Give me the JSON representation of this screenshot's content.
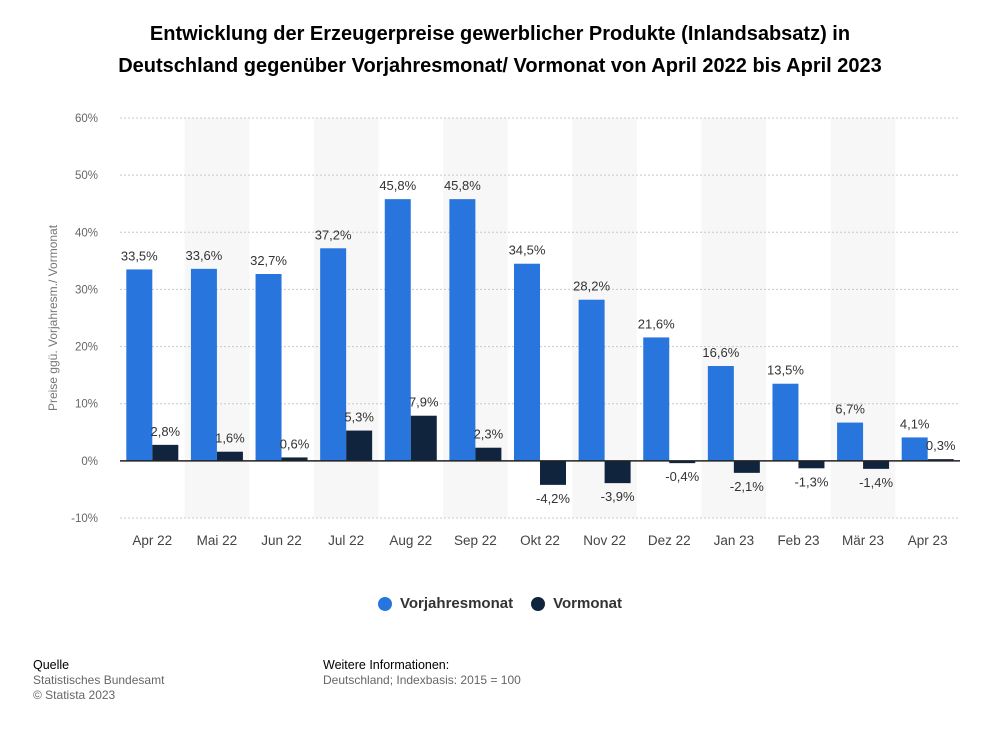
{
  "title_line1": "Entwicklung der Erzeugerpreise gewerblicher Produkte (Inlandsabsatz) in",
  "title_line2": "Deutschland gegenüber Vorjahresmonat/ Vormonat von April 2022 bis April 2023",
  "chart_data": {
    "type": "bar",
    "ylabel": "Preise ggü. Vorjahresm./ Vormonat",
    "ylim": [
      -10,
      60
    ],
    "yticks": [
      "-10%",
      "0%",
      "10%",
      "20%",
      "30%",
      "40%",
      "50%",
      "60%"
    ],
    "categories": [
      "Apr 22",
      "Mai 22",
      "Jun 22",
      "Jul 22",
      "Aug 22",
      "Sep 22",
      "Okt 22",
      "Nov 22",
      "Dez 22",
      "Jan 23",
      "Feb 23",
      "Mär 23",
      "Apr 23"
    ],
    "series": [
      {
        "name": "Vorjahresmonat",
        "color": "#2876dd",
        "values": [
          33.5,
          33.6,
          32.7,
          37.2,
          45.8,
          45.8,
          34.5,
          28.2,
          21.6,
          16.6,
          13.5,
          6.7,
          4.1
        ],
        "labels": [
          "33,5%",
          "33,6%",
          "32,7%",
          "37,2%",
          "45,8%",
          "45,8%",
          "34,5%",
          "28,2%",
          "21,6%",
          "16,6%",
          "13,5%",
          "6,7%",
          "4,1%"
        ]
      },
      {
        "name": "Vormonat",
        "color": "#10243e",
        "values": [
          2.8,
          1.6,
          0.6,
          5.3,
          7.9,
          2.3,
          -4.2,
          -3.9,
          -0.4,
          -2.1,
          -1.3,
          -1.4,
          0.3
        ],
        "labels": [
          "2,8%",
          "1,6%",
          "0,6%",
          "5,3%",
          "7,9%",
          "2,3%",
          "-4,2%",
          "-3,9%",
          "-0,4%",
          "-2,1%",
          "-1,3%",
          "-1,4%",
          "0,3%"
        ]
      }
    ],
    "grid": true,
    "legend": "bottom-center"
  },
  "footer": {
    "source_heading": "Quelle",
    "source_line1": "Statistisches Bundesamt",
    "source_line2": "© Statista 2023",
    "info_heading": "Weitere Informationen:",
    "info_line1": "Deutschland; Indexbasis: 2015 = 100"
  }
}
